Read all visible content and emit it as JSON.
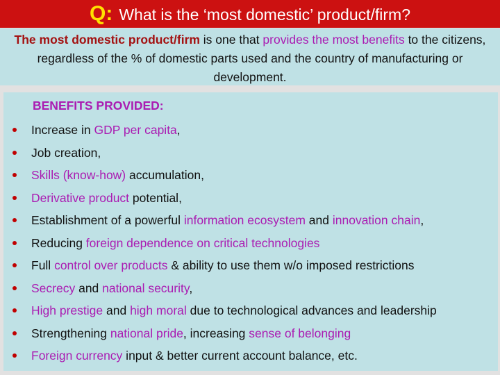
{
  "colors": {
    "banner_red": "#CC1111",
    "q_yellow": "#FFE000",
    "title_white": "#FFFFFF",
    "bg_blue": "#BFE1E5",
    "bg_gray": "#E2E1E1",
    "intro_red": "#A31111",
    "magenta": "#AA1CB2",
    "text_black": "#111111",
    "bullet_red": "#C00000"
  },
  "banner": {
    "q_label": "Q:",
    "title": "What is the ‘most domestic’ product/firm?"
  },
  "intro": {
    "segments": [
      {
        "text": "The most domestic product/firm ",
        "color": "redbold"
      },
      {
        "text": "is one that ",
        "color": "black"
      },
      {
        "text": "provides the most benefits ",
        "color": "magenta"
      },
      {
        "text": "to the citizens, regardless of the % of domestic parts used and the country of manufacturing or development.",
        "color": "black"
      }
    ]
  },
  "benefits": {
    "heading": "BENEFITS PROVIDED:",
    "items": [
      {
        "segments": [
          {
            "text": "Increase in ",
            "color": "black"
          },
          {
            "text": "GDP per capita",
            "color": "magenta"
          },
          {
            "text": ",",
            "color": "black"
          }
        ]
      },
      {
        "segments": [
          {
            "text": "Job creation,",
            "color": "black"
          }
        ]
      },
      {
        "segments": [
          {
            "text": "Skills (know-how)",
            "color": "magenta"
          },
          {
            "text": " accumulation,",
            "color": "black"
          }
        ]
      },
      {
        "segments": [
          {
            "text": "Derivative product",
            "color": "magenta"
          },
          {
            "text": " potential,",
            "color": "black"
          }
        ]
      },
      {
        "segments": [
          {
            "text": "Establishment of a powerful ",
            "color": "black"
          },
          {
            "text": "information ecosystem",
            "color": "magenta"
          },
          {
            "text": " and ",
            "color": "black"
          },
          {
            "text": "innovation chain",
            "color": "magenta"
          },
          {
            "text": ",",
            "color": "black"
          }
        ]
      },
      {
        "segments": [
          {
            "text": "Reducing ",
            "color": "black"
          },
          {
            "text": "foreign dependence on critical technologies",
            "color": "magenta"
          }
        ]
      },
      {
        "segments": [
          {
            "text": "Full ",
            "color": "black"
          },
          {
            "text": "control over products",
            "color": "magenta"
          },
          {
            "text": " & ability to use them w/o imposed restrictions",
            "color": "black"
          }
        ]
      },
      {
        "segments": [
          {
            "text": "Secrecy",
            "color": "magenta"
          },
          {
            "text": " and ",
            "color": "black"
          },
          {
            "text": "national security",
            "color": "magenta"
          },
          {
            "text": ",",
            "color": "black"
          }
        ]
      },
      {
        "segments": [
          {
            "text": "High prestige",
            "color": "magenta"
          },
          {
            "text": " and ",
            "color": "black"
          },
          {
            "text": "high moral",
            "color": "magenta"
          },
          {
            "text": " due to technological advances and leadership",
            "color": "black"
          }
        ]
      },
      {
        "segments": [
          {
            "text": "Strengthening ",
            "color": "black"
          },
          {
            "text": "national pride",
            "color": "magenta"
          },
          {
            "text": ", increasing ",
            "color": "black"
          },
          {
            "text": "sense of belonging",
            "color": "magenta"
          }
        ]
      },
      {
        "segments": [
          {
            "text": "Foreign currency",
            "color": "magenta"
          },
          {
            "text": " input & better current account balance, etc.",
            "color": "black"
          }
        ]
      }
    ]
  }
}
